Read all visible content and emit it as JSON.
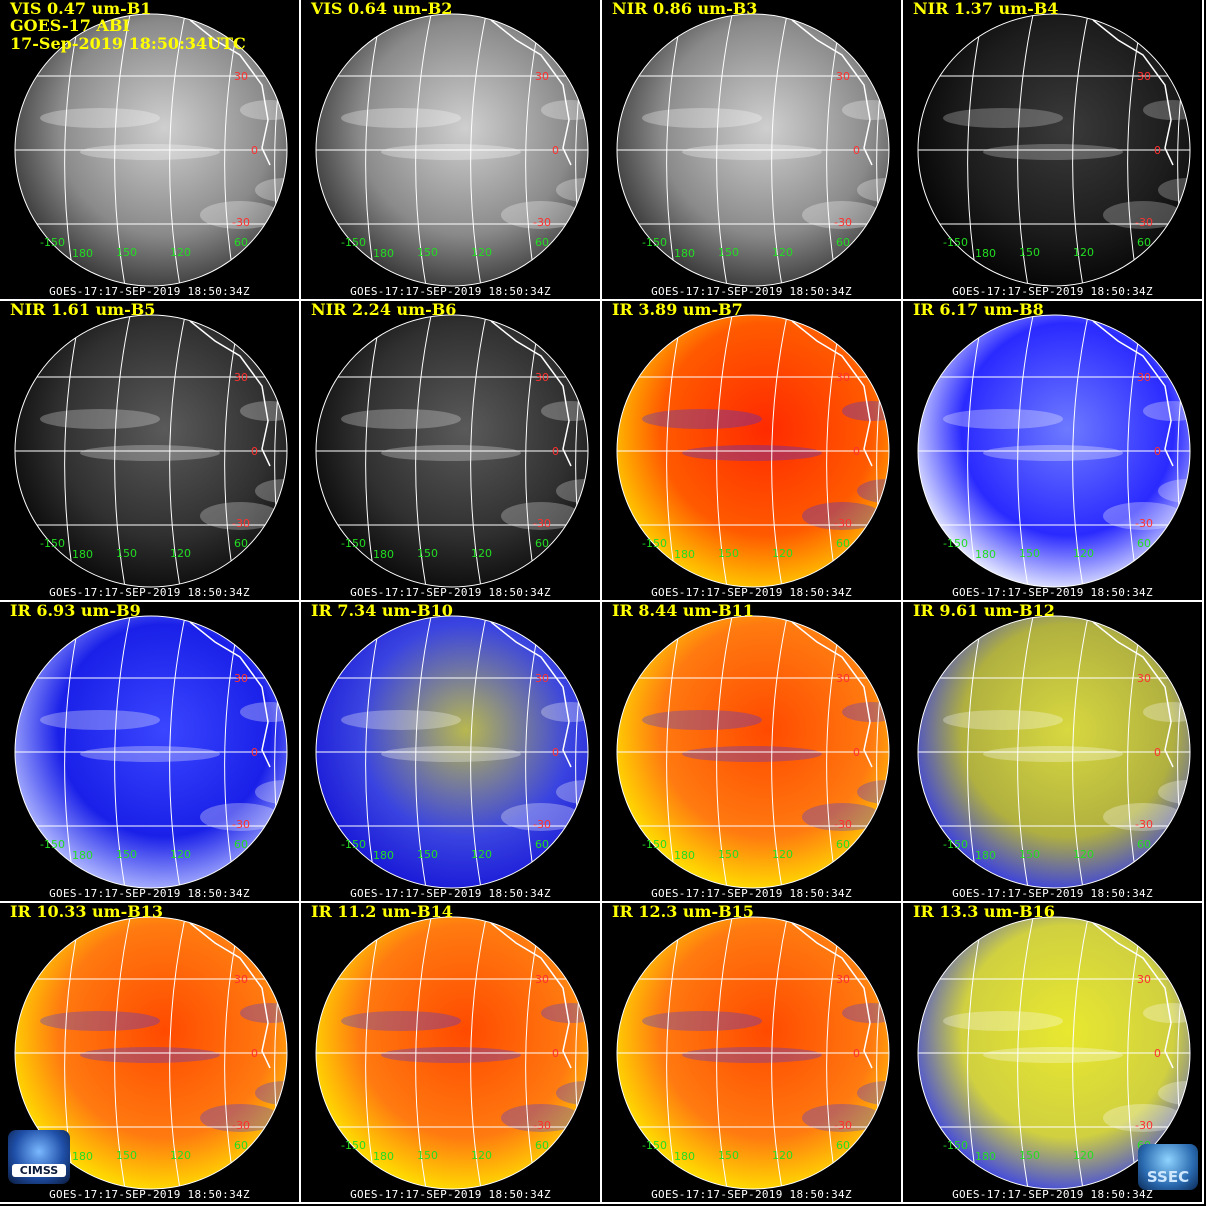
{
  "header": {
    "line2": "GOES-17 ABI",
    "line3": "17-Sep-2019 18:50:34UTC"
  },
  "footer_text": "GOES-17:17-SEP-2019 18:50:34Z",
  "lat_labels": [
    "30",
    "0",
    "-30"
  ],
  "lon_labels": [
    "-150",
    "180",
    "150",
    "120",
    "60"
  ],
  "panels": [
    {
      "title": "VIS 0.47 um-B1",
      "palette": "vis"
    },
    {
      "title": "VIS 0.64 um-B2",
      "palette": "vis"
    },
    {
      "title": "NIR 0.86 um-B3",
      "palette": "vis"
    },
    {
      "title": "NIR 1.37 um-B4",
      "palette": "dark"
    },
    {
      "title": "NIR 1.61 um-B5",
      "palette": "nir"
    },
    {
      "title": "NIR 2.24 um-B6",
      "palette": "nir"
    },
    {
      "title": "IR 3.89 um-B7",
      "palette": "red"
    },
    {
      "title": "IR 6.17 um-B8",
      "palette": "wv"
    },
    {
      "title": "IR 6.93 um-B9",
      "palette": "wv2"
    },
    {
      "title": "IR 7.34 um-B10",
      "palette": "wv3"
    },
    {
      "title": "IR 8.44 um-B11",
      "palette": "ir"
    },
    {
      "title": "IR 9.61 um-B12",
      "palette": "oz"
    },
    {
      "title": "IR 10.33 um-B13",
      "palette": "ir"
    },
    {
      "title": "IR 11.2 um-B14",
      "palette": "ir"
    },
    {
      "title": "IR 12.3 um-B15",
      "palette": "ir"
    },
    {
      "title": "IR 13.3 um-B16",
      "palette": "co2"
    }
  ],
  "logos": {
    "left": "CIMSS",
    "right": "SSEC"
  },
  "colors": {
    "title": "#ffff00",
    "lat_label": "#ff3030",
    "lon_label": "#22dd22",
    "grid": "#ffffff"
  }
}
